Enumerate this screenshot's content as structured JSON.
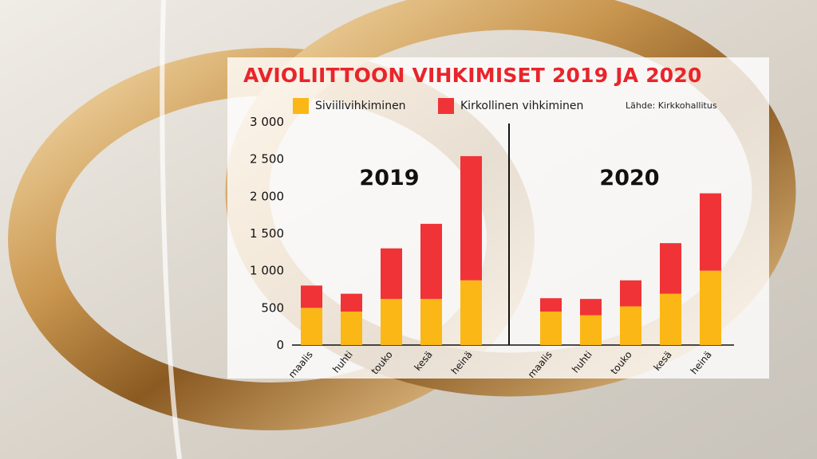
{
  "title": "AVIOLIITTOON VIHKIMISET 2019 JA 2020",
  "source": "Lähde: Kirkkohallitus",
  "legend": [
    {
      "label": "Siviilivihkiminen",
      "color": "#fbb716"
    },
    {
      "label": "Kirkollinen vihkiminen",
      "color": "#f03337"
    }
  ],
  "chart_data": {
    "type": "bar",
    "stacked": true,
    "ylim": [
      0,
      3000
    ],
    "yticks": [
      "3 000",
      "2 500",
      "2 000",
      "1 500",
      "1 000",
      "500",
      "0"
    ],
    "yticks_values": [
      3000,
      2500,
      2000,
      1500,
      1000,
      500,
      0
    ],
    "panels": [
      {
        "year": "2019",
        "categories": [
          "maalis",
          "huhti",
          "touko",
          "kesä",
          "heinä"
        ],
        "series": [
          {
            "name": "Siviilivihkiminen",
            "values": [
              500,
              450,
              620,
              620,
              870
            ]
          },
          {
            "name": "Kirkollinen vihkiminen",
            "values": [
              300,
              240,
              680,
              1010,
              1670
            ]
          }
        ]
      },
      {
        "year": "2020",
        "categories": [
          "maalis",
          "huhti",
          "touko",
          "kesä",
          "heinä"
        ],
        "series": [
          {
            "name": "Siviilivihkiminen",
            "values": [
              450,
              400,
              520,
              690,
              1000
            ]
          },
          {
            "name": "Kirkollinen vihkiminen",
            "values": [
              180,
              220,
              350,
              680,
              1040
            ]
          }
        ]
      }
    ]
  }
}
